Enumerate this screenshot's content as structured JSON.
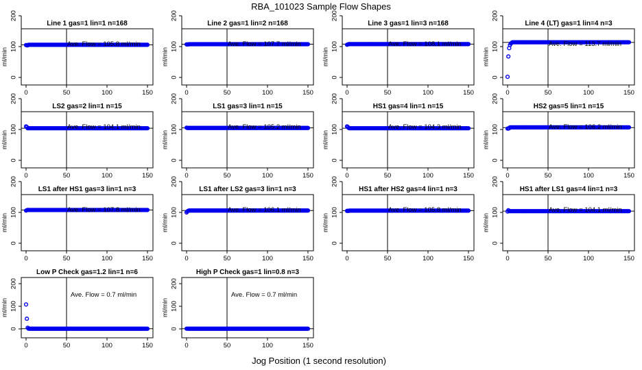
{
  "chart_data": {
    "type": "scatter",
    "title": "RBA_101023  Sample Flow Shapes",
    "xlabel": "Jog Position (1 second resolution)",
    "ylabel": "ml/min",
    "xlim": [
      0,
      150
    ],
    "ylim": [
      0,
      200
    ],
    "x_ticks": [
      0,
      50,
      100,
      150
    ],
    "y_ticks": [
      0,
      100,
      200
    ],
    "y_ticks_low": [
      0,
      100,
      200
    ],
    "vline_x": 50,
    "annotation_prefix": "Ave. Flow = ",
    "annotation_unit": "ml/min",
    "panels": [
      {
        "title": "Line 1 gas=1 lin=1 n=168",
        "avg": "105.8",
        "level": 105.8,
        "hline": 105.8,
        "start": [
          105,
          104,
          104
        ]
      },
      {
        "title": "Line 2 gas=1 lin=2 n=168",
        "avg": "107.7",
        "level": 107.7,
        "hline": 107.7,
        "start": [
          107,
          107,
          107
        ]
      },
      {
        "title": "Line 3 gas=1 lin=3 n=168",
        "avg": "108.1",
        "level": 108.1,
        "hline": 108.1,
        "start": [
          106,
          107,
          108
        ]
      },
      {
        "title": "Line 4 (LT) gas=1 lin=4 n=3",
        "avg": "113.7",
        "level": 114,
        "hline": 113.7,
        "start": [
          2,
          68,
          95,
          105,
          110,
          112
        ]
      },
      {
        "title": "LS2 gas=2 lin=1 n=15",
        "avg": "104.1",
        "level": 104,
        "hline": 104.1,
        "start": [
          110,
          108,
          104
        ]
      },
      {
        "title": "LS1 gas=3 lin=1 n=15",
        "avg": "105.2",
        "level": 105,
        "hline": 105.2,
        "start": [
          106,
          105,
          105
        ]
      },
      {
        "title": "HS1 gas=4 lin=1 n=15",
        "avg": "104.3",
        "level": 104,
        "hline": 104.3,
        "start": [
          110,
          108,
          105
        ]
      },
      {
        "title": "HS2 gas=5 lin=1 n=15",
        "avg": "106.2",
        "level": 107,
        "hline": 106.2,
        "start": [
          103,
          103,
          104
        ]
      },
      {
        "title": "LS1 after HS1 gas=3 lin=1 n=3",
        "avg": "107.8",
        "level": 107.8,
        "hline": 107.8,
        "start": [
          106,
          107,
          108
        ]
      },
      {
        "title": "LS1 after LS2 gas=3 lin=1 n=3",
        "avg": "106.1",
        "level": 106.1,
        "hline": 106.1,
        "start": [
          100,
          103,
          105
        ]
      },
      {
        "title": "HS1 after HS2 gas=4 lin=1 n=3",
        "avg": "105.8",
        "level": 105.8,
        "hline": 105.8,
        "start": [
          105,
          105,
          105
        ]
      },
      {
        "title": "HS1 after LS1 gas=4 lin=1 n=3",
        "avg": "104.1",
        "level": 104,
        "hline": 104.1,
        "start": [
          103,
          107,
          104
        ]
      },
      {
        "title": "Low P Check gas=1.2 lin=1 n=6",
        "avg": "0.7",
        "level": 0.7,
        "hline": 0.7,
        "low": true,
        "start": [
          108,
          45,
          5,
          1
        ]
      },
      {
        "title": "High P Check gas=1 lin=0.8 n=3",
        "avg": "0.7",
        "level": 0.7,
        "hline": 0.7,
        "low": true,
        "start": [
          1,
          1,
          0.7
        ]
      }
    ]
  }
}
